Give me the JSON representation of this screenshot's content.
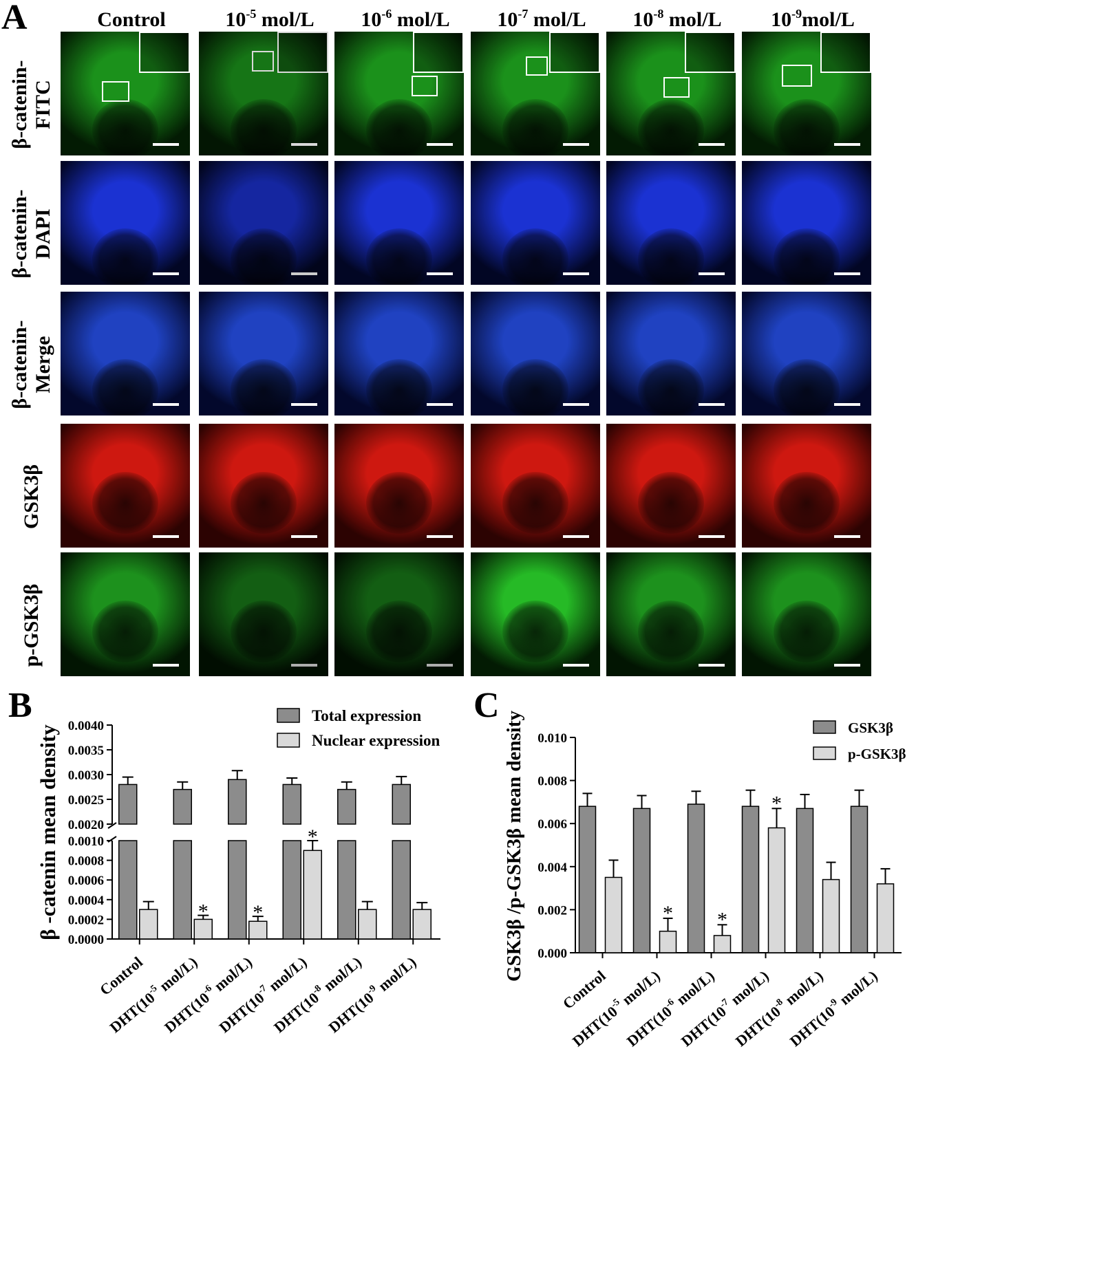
{
  "panels": {
    "a": "A",
    "b": "B",
    "c": "C"
  },
  "columns": [
    {
      "base": "Control",
      "exp": "",
      "unit": ""
    },
    {
      "base": "10",
      "exp": "-5",
      "unit": " mol/L"
    },
    {
      "base": "10",
      "exp": "-6",
      "unit": " mol/L"
    },
    {
      "base": "10",
      "exp": "-7",
      "unit": " mol/L"
    },
    {
      "base": "10",
      "exp": "-8",
      "unit": " mol/L"
    },
    {
      "base": "10",
      "exp": "-9",
      "unit": "mol/L"
    }
  ],
  "rows": [
    {
      "label1": "β-catenin-",
      "label2": "FITC",
      "stain": "#1a8a1a",
      "bg": "#031a03"
    },
    {
      "label1": "β-catenin-",
      "label2": "DAPI",
      "stain": "#1a30c8",
      "bg": "#020622"
    },
    {
      "label1": "β-catenin-",
      "label2": "Merge",
      "stain": "#1e3fb8",
      "bg": "#03082a"
    },
    {
      "label1": "GSK3β",
      "label2": "",
      "stain": "#c4170f",
      "bg": "#2a0302"
    },
    {
      "label1": "p-GSK3β",
      "label2": "",
      "stain": "#1c8a1c",
      "bg": "#021402"
    }
  ],
  "chart_data": [
    {
      "id": "B",
      "type": "bar",
      "ylabel": "β -catenin mean density",
      "broken_axis": true,
      "ylim_lower": [
        0,
        0.001
      ],
      "ylim_upper": [
        0.002,
        0.004
      ],
      "yticks_lower": [
        "0.0000",
        "0.0002",
        "0.0004",
        "0.0006",
        "0.0008",
        "0.0010"
      ],
      "yticks_upper": [
        "0.0020",
        "0.0025",
        "0.0030",
        "0.0035",
        "0.0040"
      ],
      "categories": [
        {
          "pre": "Control",
          "exp": "",
          "post": ""
        },
        {
          "pre": "DHT(10",
          "exp": "-5",
          "post": " mol/L)"
        },
        {
          "pre": "DHT(10",
          "exp": "-6",
          "post": " mol/L)"
        },
        {
          "pre": "DHT(10",
          "exp": "-7",
          "post": " mol/L)"
        },
        {
          "pre": "DHT(10",
          "exp": "-8",
          "post": " mol/L)"
        },
        {
          "pre": "DHT(10",
          "exp": "-9",
          "post": " mol/L)"
        }
      ],
      "series": [
        {
          "name": "Total expression",
          "color": "#8c8c8c",
          "values": [
            0.0028,
            0.0027,
            0.0029,
            0.0028,
            0.0027,
            0.0028
          ],
          "errors": [
            0.00015,
            0.00015,
            0.00018,
            0.00013,
            0.00015,
            0.00016
          ],
          "significant": [
            false,
            false,
            false,
            false,
            false,
            false
          ]
        },
        {
          "name": "Nuclear expression",
          "color": "#d9d9d9",
          "values": [
            0.0003,
            0.0002,
            0.00018,
            0.0009,
            0.0003,
            0.0003
          ],
          "errors": [
            8e-05,
            4e-05,
            5e-05,
            0.0001,
            8e-05,
            7e-05
          ],
          "significant": [
            false,
            true,
            true,
            true,
            false,
            false
          ]
        }
      ],
      "significance_mark": "*",
      "legend": "top-right"
    },
    {
      "id": "C",
      "type": "bar",
      "ylabel": "GSK3β /p-GSK3β  mean density",
      "ylim": [
        0,
        0.01
      ],
      "yticks": [
        "0.000",
        "0.002",
        "0.004",
        "0.006",
        "0.008",
        "0.010"
      ],
      "categories": [
        {
          "pre": "Control",
          "exp": "",
          "post": ""
        },
        {
          "pre": "DHT(10",
          "exp": "-5",
          "post": " mol/L)"
        },
        {
          "pre": "DHT(10",
          "exp": "-6",
          "post": " mol/L)"
        },
        {
          "pre": "DHT(10",
          "exp": "-7",
          "post": " mol/L)"
        },
        {
          "pre": "DHT(10",
          "exp": "-8",
          "post": " mol/L)"
        },
        {
          "pre": "DHT(10",
          "exp": "-9",
          "post": " mol/L)"
        }
      ],
      "series": [
        {
          "name": "GSK3β",
          "color": "#8c8c8c",
          "values": [
            0.0068,
            0.0067,
            0.0069,
            0.0068,
            0.0067,
            0.0068
          ],
          "errors": [
            0.0006,
            0.0006,
            0.0006,
            0.00075,
            0.00065,
            0.00075
          ],
          "significant": [
            false,
            false,
            false,
            false,
            false,
            false
          ]
        },
        {
          "name": "p-GSK3β",
          "color": "#d9d9d9",
          "values": [
            0.0035,
            0.001,
            0.0008,
            0.0058,
            0.0034,
            0.0032
          ],
          "errors": [
            0.0008,
            0.0006,
            0.0005,
            0.0009,
            0.0008,
            0.0007
          ],
          "significant": [
            false,
            true,
            true,
            true,
            false,
            false
          ]
        }
      ],
      "significance_mark": "*",
      "legend": "top-right"
    }
  ]
}
